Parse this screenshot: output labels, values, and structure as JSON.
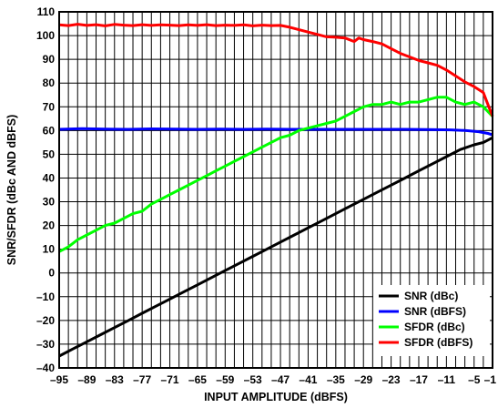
{
  "chart_data": {
    "type": "line",
    "xlabel": "INPUT AMPLITUDE (dBFS)",
    "ylabel": "SNR/SFDR (dBc AND dBFS)",
    "xlim": [
      -95,
      -1
    ],
    "ylim": [
      -40,
      110
    ],
    "x_tick_labels": [
      "–95",
      "–89",
      "–83",
      "–77",
      "–71",
      "–65",
      "–59",
      "–53",
      "–47",
      "–41",
      "–35",
      "–29",
      "–23",
      "–17",
      "–11",
      "–5",
      "–1"
    ],
    "x_tick_values": [
      -95,
      -89,
      -83,
      -77,
      -71,
      -65,
      -59,
      -53,
      -47,
      -41,
      -35,
      -29,
      -23,
      -17,
      -11,
      -5,
      -1
    ],
    "y_tick_labels": [
      "110",
      "100",
      "90",
      "80",
      "70",
      "60",
      "50",
      "40",
      "30",
      "20",
      "10",
      "0",
      "–10",
      "–20",
      "–30",
      "–40"
    ],
    "y_tick_values": [
      110,
      100,
      90,
      80,
      70,
      60,
      50,
      40,
      30,
      20,
      10,
      0,
      -10,
      -20,
      -30,
      -40
    ],
    "x_minor_step": 2,
    "grid": true,
    "legend_position": "bottom-right",
    "series": [
      {
        "name": "SNR (dBc)",
        "color": "#000000",
        "x": [
          -95,
          -92,
          -89,
          -86,
          -83,
          -80,
          -77,
          -74,
          -71,
          -68,
          -65,
          -62,
          -59,
          -56,
          -53,
          -50,
          -47,
          -44,
          -41,
          -38,
          -35,
          -32,
          -29,
          -26,
          -23,
          -20,
          -17,
          -14,
          -11,
          -8,
          -5,
          -3,
          -1
        ],
        "y": [
          -35,
          -32,
          -29,
          -26,
          -23,
          -20,
          -17,
          -14,
          -11,
          -8,
          -5,
          -2,
          1,
          4,
          7,
          10,
          13,
          16,
          19,
          22,
          25,
          28,
          31,
          34,
          37,
          40,
          43,
          46,
          49,
          52,
          54,
          55,
          57
        ]
      },
      {
        "name": "SNR (dBFS)",
        "color": "#0000ff",
        "x": [
          -95,
          -90,
          -85,
          -80,
          -75,
          -70,
          -65,
          -60,
          -55,
          -50,
          -45,
          -40,
          -35,
          -30,
          -25,
          -20,
          -15,
          -10,
          -7,
          -4,
          -2,
          -1
        ],
        "y": [
          60.5,
          60.8,
          60.6,
          60.5,
          60.7,
          60.6,
          60.5,
          60.6,
          60.5,
          60.6,
          60.5,
          60.5,
          60.5,
          60.5,
          60.5,
          60.5,
          60.4,
          60.3,
          60.0,
          59.5,
          58.8,
          58.2
        ]
      },
      {
        "name": "SFDR (dBc)",
        "color": "#00ff00",
        "x": [
          -95,
          -93,
          -91,
          -89,
          -87,
          -85,
          -83,
          -81,
          -79,
          -77,
          -75,
          -73,
          -71,
          -69,
          -67,
          -65,
          -63,
          -61,
          -59,
          -57,
          -55,
          -53,
          -51,
          -49,
          -47,
          -45,
          -43,
          -41,
          -39,
          -37,
          -35,
          -33,
          -31,
          -29,
          -27,
          -25,
          -23,
          -21,
          -19,
          -17,
          -15,
          -13,
          -11,
          -9,
          -7,
          -5,
          -3,
          -2,
          -1
        ],
        "y": [
          9,
          11,
          14,
          16,
          18,
          20,
          21,
          23,
          25,
          26,
          29,
          31,
          33,
          35,
          37,
          39,
          41,
          43,
          45,
          47,
          49,
          51,
          53,
          55,
          57,
          58,
          60,
          61,
          62,
          63,
          64,
          66,
          68,
          70,
          71,
          71,
          72,
          71,
          72,
          72,
          73,
          74,
          74,
          72,
          71,
          72,
          70,
          68,
          66
        ]
      },
      {
        "name": "SFDR (dBFS)",
        "color": "#ff0000",
        "x": [
          -95,
          -93,
          -91,
          -89,
          -87,
          -85,
          -83,
          -81,
          -79,
          -77,
          -75,
          -73,
          -71,
          -69,
          -67,
          -65,
          -63,
          -61,
          -59,
          -57,
          -55,
          -53,
          -51,
          -49,
          -47,
          -45,
          -43,
          -41,
          -39,
          -37,
          -35,
          -33,
          -31,
          -30,
          -29,
          -27,
          -25,
          -23,
          -21,
          -19,
          -17,
          -15,
          -13,
          -11,
          -9,
          -7,
          -5,
          -3,
          -2,
          -1
        ],
        "y": [
          104.5,
          104.2,
          104.8,
          104.3,
          104.6,
          104.1,
          104.7,
          104.4,
          104.2,
          104.6,
          104.3,
          104.5,
          104.4,
          104.2,
          104.5,
          104.3,
          104.6,
          104.2,
          104.4,
          104.3,
          104.5,
          104.1,
          104.4,
          104.2,
          104.3,
          103.5,
          102.5,
          101.5,
          100.5,
          99.5,
          99.3,
          99.0,
          97.5,
          99.0,
          98.3,
          97.5,
          96.5,
          94.5,
          92.5,
          91.0,
          89.5,
          88.5,
          87.5,
          85.5,
          83.0,
          80.5,
          78.5,
          76.0,
          71.0,
          66.0
        ]
      }
    ]
  }
}
